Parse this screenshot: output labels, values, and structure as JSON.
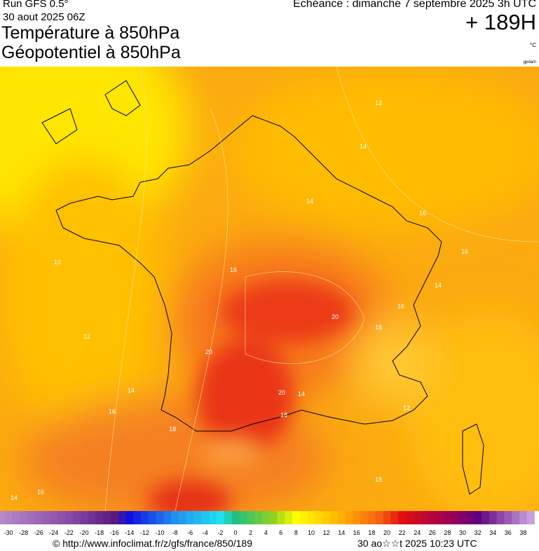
{
  "header": {
    "run": "Run GFS 0.5°",
    "date": "30 aout 2025 06Z",
    "title1": "Température à 850hPa",
    "title2": "Géopotentiel à 850hPa",
    "echeance": "Echéance : dimanche 7 septembre 2025 3h UTC",
    "lead": "+ 189H",
    "unit": "°C",
    "credit": "gpdam"
  },
  "map": {
    "contour_labels": [
      12,
      14,
      14,
      16,
      16,
      14,
      16,
      18,
      20,
      16,
      10,
      12,
      20,
      20,
      18,
      14,
      16,
      18,
      14,
      16,
      18,
      14,
      12
    ]
  },
  "colorbar": {
    "ticks": [
      -30,
      -28,
      -26,
      -24,
      -22,
      -20,
      -18,
      -16,
      -14,
      -12,
      -10,
      -8,
      -6,
      -4,
      -2,
      0,
      2,
      4,
      6,
      8,
      10,
      12,
      14,
      16,
      18,
      20,
      22,
      24,
      26,
      28,
      30,
      32,
      34,
      36,
      38
    ]
  },
  "footer": {
    "url": "© http://www.infoclimat.fr/z/gfs/france/850/189",
    "stamp": "30 ao☆☆t 2025 10:23 UTC"
  }
}
